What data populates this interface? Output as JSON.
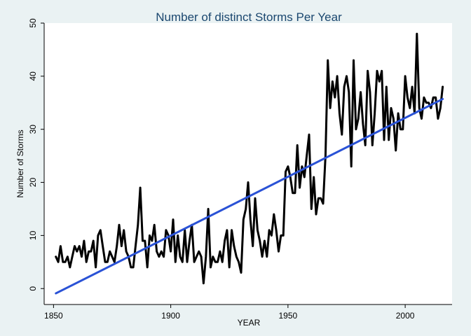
{
  "chart_data": {
    "type": "line",
    "title": "Number of distinct Storms Per Year",
    "xlabel": "YEAR",
    "ylabel": "Number of Storms",
    "xlim": [
      1846,
      2020
    ],
    "ylim": [
      -3,
      50
    ],
    "x_ticks": [
      1850,
      1900,
      1950,
      2000
    ],
    "y_ticks": [
      0,
      10,
      20,
      30,
      40,
      50
    ],
    "colors": {
      "background": "#eaf2f3",
      "plot_area": "#ffffff",
      "series": "#000000",
      "fit": "#2a52d6",
      "title": "#1a476f"
    },
    "series": [
      {
        "name": "Number of Storms",
        "style": "line",
        "x": [
          1851,
          1852,
          1853,
          1854,
          1855,
          1856,
          1857,
          1858,
          1859,
          1860,
          1861,
          1862,
          1863,
          1864,
          1865,
          1866,
          1867,
          1868,
          1869,
          1870,
          1871,
          1872,
          1873,
          1874,
          1875,
          1876,
          1877,
          1878,
          1879,
          1880,
          1881,
          1882,
          1883,
          1884,
          1885,
          1886,
          1887,
          1888,
          1889,
          1890,
          1891,
          1892,
          1893,
          1894,
          1895,
          1896,
          1897,
          1898,
          1899,
          1900,
          1901,
          1902,
          1903,
          1904,
          1905,
          1906,
          1907,
          1908,
          1909,
          1910,
          1911,
          1912,
          1913,
          1914,
          1915,
          1916,
          1917,
          1918,
          1919,
          1920,
          1921,
          1922,
          1923,
          1924,
          1925,
          1926,
          1927,
          1928,
          1929,
          1930,
          1931,
          1932,
          1933,
          1934,
          1935,
          1936,
          1937,
          1938,
          1939,
          1940,
          1941,
          1942,
          1943,
          1944,
          1945,
          1946,
          1947,
          1948,
          1949,
          1950,
          1951,
          1952,
          1953,
          1954,
          1955,
          1956,
          1957,
          1958,
          1959,
          1960,
          1961,
          1962,
          1963,
          1964,
          1965,
          1966,
          1967,
          1968,
          1969,
          1970,
          1971,
          1972,
          1973,
          1974,
          1975,
          1976,
          1977,
          1978,
          1979,
          1980,
          1981,
          1982,
          1983,
          1984,
          1985,
          1986,
          1987,
          1988,
          1989,
          1990,
          1991,
          1992,
          1993,
          1994,
          1995,
          1996,
          1997,
          1998,
          1999,
          2000,
          2001,
          2002,
          2003,
          2004,
          2005,
          2006,
          2007,
          2008,
          2009,
          2010,
          2011,
          2012,
          2013,
          2014,
          2015,
          2016
        ],
        "values": [
          6,
          5,
          8,
          5,
          5,
          6,
          4,
          6,
          8,
          7,
          8,
          6,
          9,
          5,
          7,
          7,
          9,
          4,
          10,
          11,
          8,
          5,
          5,
          7,
          6,
          5,
          8,
          12,
          8,
          11,
          7,
          6,
          4,
          4,
          8,
          12,
          19,
          9,
          9,
          4,
          10,
          9,
          12,
          7,
          6,
          7,
          6,
          11,
          10,
          7,
          13,
          5,
          10,
          6,
          5,
          11,
          5,
          9,
          12,
          5,
          6,
          7,
          6,
          1,
          6,
          15,
          4,
          6,
          5,
          5,
          7,
          5,
          9,
          11,
          4,
          11,
          8,
          6,
          5,
          3,
          13,
          15,
          20,
          13,
          8,
          17,
          11,
          9,
          6,
          9,
          6,
          11,
          10,
          14,
          11,
          7,
          10,
          10,
          22,
          23,
          21,
          18,
          18,
          27,
          19,
          23,
          21,
          25,
          29,
          15,
          21,
          14,
          17,
          17,
          16,
          25,
          43,
          34,
          39,
          36,
          40,
          33,
          29,
          38,
          40,
          37,
          23,
          43,
          30,
          32,
          37,
          31,
          27,
          41,
          37,
          27,
          33,
          41,
          39,
          41,
          28,
          38,
          28,
          34,
          32,
          26,
          33,
          30,
          30,
          40,
          36,
          34,
          38,
          33,
          48,
          34,
          32,
          36,
          35,
          35,
          34,
          36,
          36,
          32,
          34,
          38
        ]
      },
      {
        "name": "Linear fit",
        "style": "line",
        "x": [
          1851,
          2016
        ],
        "values": [
          -0.9,
          35.7
        ]
      }
    ]
  }
}
